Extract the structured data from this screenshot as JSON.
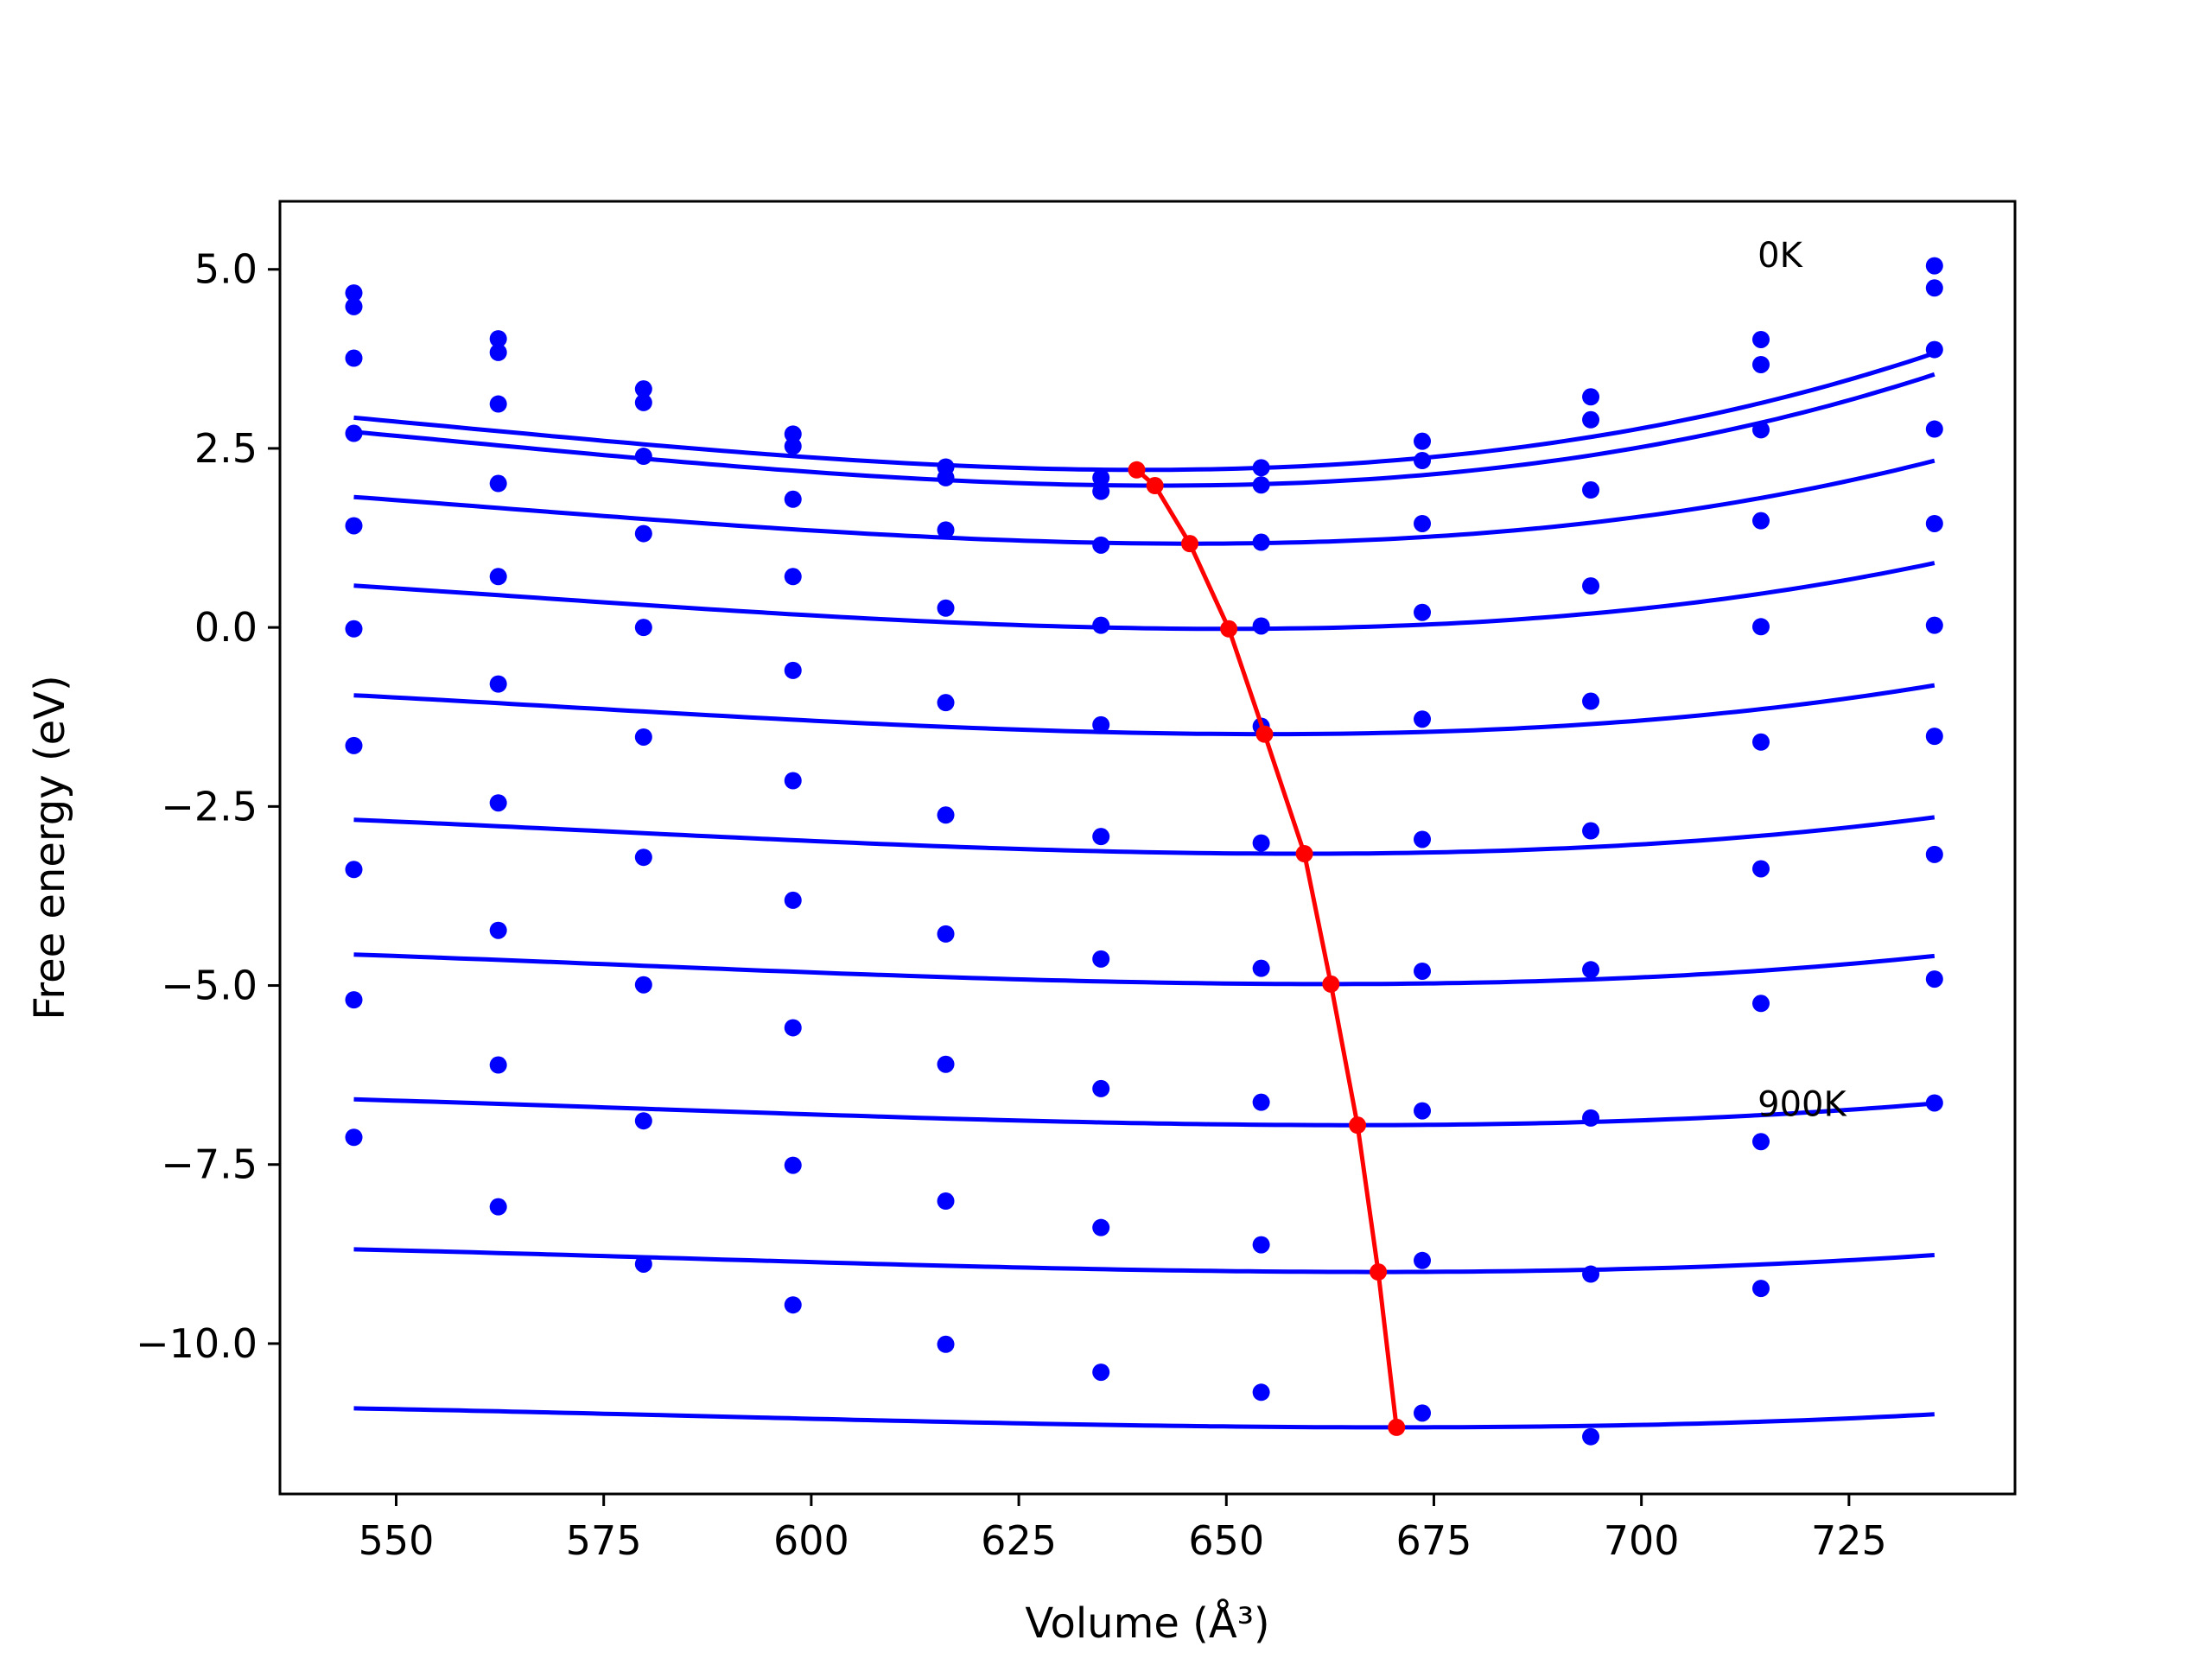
{
  "chart_data": {
    "type": "line",
    "xlabel": "Volume (Å³)",
    "ylabel": "Free energy (eV)",
    "xlim": [
      536,
      745
    ],
    "ylim": [
      -12.1,
      5.95
    ],
    "x_ticks": [
      550,
      575,
      600,
      625,
      650,
      675,
      700,
      725
    ],
    "x_tick_labels": [
      "550",
      "575",
      "600",
      "625",
      "650",
      "675",
      "700",
      "725"
    ],
    "y_ticks": [
      5.0,
      2.5,
      0.0,
      -2.5,
      -5.0,
      -7.5,
      -10.0
    ],
    "y_tick_labels": [
      "5.0",
      "2.5",
      "0.0",
      "−2.5",
      "−5.0",
      "−7.5",
      "−10.0"
    ],
    "grid": false,
    "legend": "none",
    "annotations": [
      {
        "text": "0K",
        "x": 714,
        "y": 5.2
      },
      {
        "text": "900K",
        "x": 714,
        "y": -6.65
      }
    ],
    "colors": {
      "series": "#0000ff",
      "minimum_line": "#ff0000",
      "axes": "#000000"
    },
    "volumes": [
      544.9,
      562.3,
      579.8,
      597.8,
      616.2,
      634.9,
      654.2,
      673.6,
      693.9,
      714.4,
      735.3
    ],
    "series": [
      {
        "values": [
          4.67,
          4.03,
          3.33,
          2.7,
          2.24,
          2.09,
          2.23,
          2.6,
          3.22,
          4.02,
          5.05
        ],
        "fit": {
          "a": 2.2,
          "b": 0.00013,
          "vmin": 640
        }
      },
      {
        "values": [
          4.48,
          3.84,
          3.14,
          2.53,
          2.09,
          1.9,
          1.99,
          2.33,
          2.9,
          3.67,
          4.74
        ],
        "fit": {
          "a": 1.98,
          "b": 0.00013,
          "vmin": 642
        }
      },
      {
        "values": [
          3.76,
          3.12,
          2.39,
          1.79,
          1.36,
          1.15,
          1.19,
          1.45,
          1.92,
          2.76,
          3.88
        ],
        "fit": {
          "a": 1.17,
          "b": 0.000107,
          "vmin": 646
        }
      },
      {
        "values": [
          2.71,
          2.01,
          1.31,
          0.71,
          0.27,
          0.03,
          0.02,
          0.21,
          0.58,
          1.49,
          2.77
        ],
        "fit": {
          "a": -0.02,
          "b": 9.42e-05,
          "vmin": 650
        }
      },
      {
        "values": [
          1.42,
          0.71,
          0.0,
          -0.6,
          -1.05,
          -1.36,
          -1.38,
          -1.28,
          -1.03,
          0.01,
          1.45
        ],
        "fit": {
          "a": -1.49,
          "b": 8e-05,
          "vmin": 655
        }
      },
      {
        "values": [
          -0.02,
          -0.79,
          -1.53,
          -2.14,
          -2.62,
          -2.92,
          -3.01,
          -2.96,
          -2.84,
          -1.6,
          0.03
        ],
        "fit": {
          "a": -3.16,
          "b": 6.7e-05,
          "vmin": 659
        }
      },
      {
        "values": [
          -1.65,
          -2.45,
          -3.21,
          -3.81,
          -4.28,
          -4.63,
          -4.76,
          -4.8,
          -4.78,
          -3.37,
          -1.52
        ],
        "fit": {
          "a": -4.98,
          "b": 5.65e-05,
          "vmin": 662
        }
      },
      {
        "values": [
          -3.38,
          -4.23,
          -4.99,
          -5.59,
          -6.1,
          -6.44,
          -6.63,
          -6.75,
          -6.85,
          -5.25,
          -3.17
        ],
        "fit": {
          "a": -6.95,
          "b": 4.8e-05,
          "vmin": 665
        }
      },
      {
        "values": [
          -5.2,
          -6.11,
          -6.89,
          -7.51,
          -8.01,
          -8.38,
          -8.62,
          -8.84,
          -9.03,
          -7.18,
          -4.91
        ],
        "fit": {
          "a": -9.0,
          "b": 4.1e-05,
          "vmin": 668
        }
      },
      {
        "values": [
          -7.12,
          -8.09,
          -8.89,
          -9.46,
          -10.01,
          -10.4,
          -10.68,
          -10.97,
          -11.3,
          -9.23,
          -6.64
        ],
        "fit": {
          "a": -11.17,
          "b": 3.4e-05,
          "vmin": 670
        }
      }
    ],
    "minimum_line": {
      "x": [
        639.2,
        641.4,
        645.6,
        650.3,
        654.6,
        659.4,
        662.6,
        665.8,
        668.3,
        670.5
      ],
      "y": [
        2.2,
        1.98,
        1.17,
        -0.02,
        -1.49,
        -3.16,
        -4.98,
        -6.95,
        -9.0,
        -11.17
      ]
    }
  }
}
